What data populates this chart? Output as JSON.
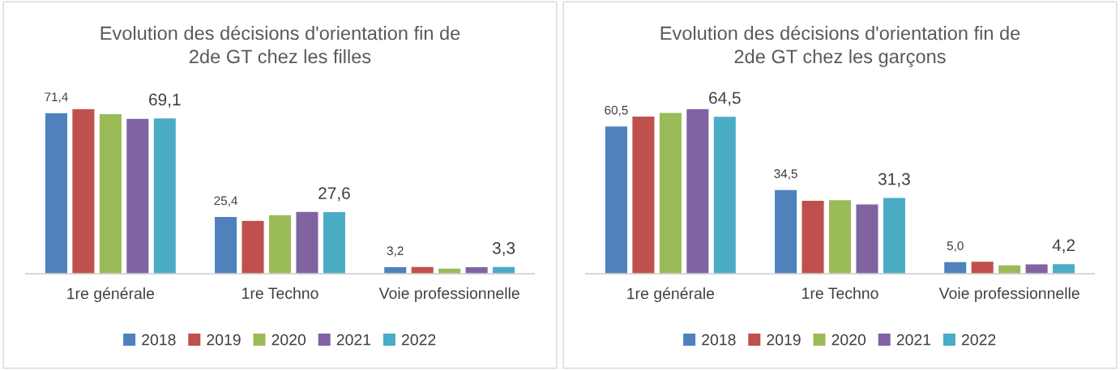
{
  "chart_data": [
    {
      "type": "bar",
      "title": "Evolution des décisions d'orientation fin de\n2de GT chez les filles",
      "categories": [
        "1re générale",
        "1re Techno",
        "Voie professionnelle"
      ],
      "tick_labels": "x",
      "grid": false,
      "legend": "bottom",
      "series": [
        {
          "name": "2018",
          "color": "#4f81bd",
          "values": [
            71.4,
            25.4,
            3.2
          ],
          "value_labels": [
            "71,4",
            "25,4",
            "3,2"
          ]
        },
        {
          "name": "2019",
          "color": "#c0504d",
          "values": [
            73.2,
            23.7,
            3.3
          ]
        },
        {
          "name": "2020",
          "color": "#9bbb59",
          "values": [
            71.0,
            26.2,
            2.6
          ]
        },
        {
          "name": "2021",
          "color": "#8064a2",
          "values": [
            68.9,
            27.7,
            3.2
          ]
        },
        {
          "name": "2022",
          "color": "#4bacc6",
          "values": [
            69.1,
            27.6,
            3.3
          ],
          "value_labels": [
            "69,1",
            "27,6",
            "3,3"
          ]
        }
      ]
    },
    {
      "type": "bar",
      "title": "Evolution des décisions d'orientation fin de\n2de GT chez les garçons",
      "categories": [
        "1re générale",
        "1re Techno",
        "Voie professionnelle"
      ],
      "tick_labels": "x",
      "grid": false,
      "legend": "bottom",
      "series": [
        {
          "name": "2018",
          "color": "#4f81bd",
          "values": [
            60.5,
            34.5,
            5.0
          ],
          "value_labels": [
            "60,5",
            "34,5",
            "5,0"
          ]
        },
        {
          "name": "2019",
          "color": "#c0504d",
          "values": [
            64.6,
            30.1,
            5.2
          ]
        },
        {
          "name": "2020",
          "color": "#9bbb59",
          "values": [
            66.1,
            30.4,
            3.7
          ]
        },
        {
          "name": "2021",
          "color": "#8064a2",
          "values": [
            67.6,
            28.6,
            4.1
          ]
        },
        {
          "name": "2022",
          "color": "#4bacc6",
          "values": [
            64.5,
            31.3,
            4.2
          ],
          "value_labels": [
            "64,5",
            "31,3",
            "4,2"
          ]
        }
      ]
    }
  ]
}
